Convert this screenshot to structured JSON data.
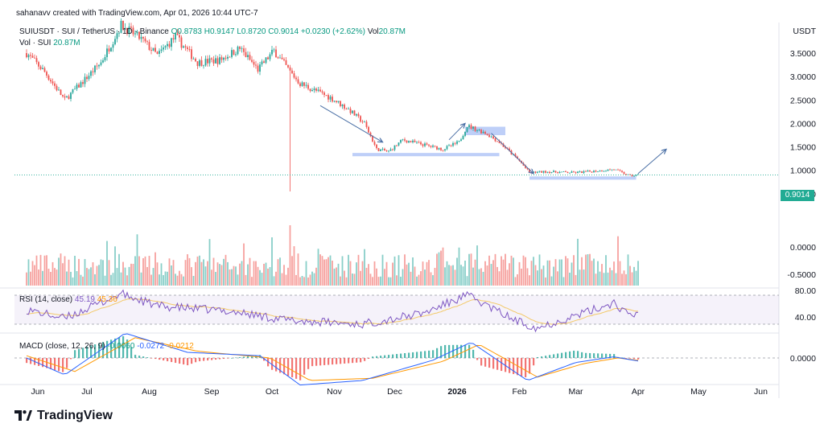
{
  "header": {
    "credit": "sahanavv created with TradingView.com, Apr 01, 2026 10:44 UTC-7",
    "symbol": "SUIUSDT · SUI / TetherUS · 1D · Binance",
    "open": "O0.8783",
    "high": "H0.9147",
    "low": "L0.8720",
    "close": "C0.9014",
    "change": "+0.0230 (+2.62%)",
    "vol_label": "Vol",
    "vol_value": "20.87M",
    "vol_line_label": "Vol · SUI",
    "vol_line_value": "20.87M"
  },
  "axis": {
    "currency": "USDT",
    "last_price_tag": "0.9014"
  },
  "rsi": {
    "label": "RSI (14, close)",
    "value": "45.19",
    "ma_value": "45.36"
  },
  "macd": {
    "label": "MACD (close, 12, 26, 9)",
    "hist_value": "-0.0060",
    "macd_value": "-0.0272",
    "signal_value": "-0.0212"
  },
  "brand": {
    "name": "TradingView"
  },
  "colors": {
    "up": "#26a69a",
    "down": "#ef5350",
    "zone": "#b3c7f7",
    "arrow": "#4a6fa5",
    "rsi_line": "#7e57c2",
    "rsi_ma": "#f3c969",
    "macd_line": "#2962ff",
    "signal_line": "#ff9800"
  },
  "chart_data": [
    {
      "type": "candlestick",
      "title": "SUIUSDT · SUI / TetherUS · 1D · Binance",
      "y_unit": "USDT",
      "y_ticks": [
        "3.5000",
        "3.0000",
        "2.5000",
        "2.0000",
        "1.5000",
        "1.0000",
        "0.5000",
        "0.0000",
        "-0.5000"
      ],
      "x_ticks": [
        "Jun",
        "Jul",
        "Aug",
        "Sep",
        "Oct",
        "Nov",
        "Dec",
        "2026",
        "Feb",
        "Mar",
        "Apr",
        "May",
        "Jun"
      ],
      "ylim": [
        -0.5,
        3.7
      ],
      "close_path": [
        [
          "2025-06-01",
          3.5
        ],
        [
          "2025-06-10",
          3.1
        ],
        [
          "2025-06-20",
          2.5
        ],
        [
          "2025-06-28",
          2.85
        ],
        [
          "2025-07-08",
          3.3
        ],
        [
          "2025-07-18",
          4.1
        ],
        [
          "2025-07-28",
          3.8
        ],
        [
          "2025-08-05",
          3.45
        ],
        [
          "2025-08-14",
          3.85
        ],
        [
          "2025-08-25",
          3.3
        ],
        [
          "2025-09-05",
          3.35
        ],
        [
          "2025-09-15",
          3.6
        ],
        [
          "2025-09-24",
          3.15
        ],
        [
          "2025-10-02",
          3.55
        ],
        [
          "2025-10-10",
          3.1
        ],
        [
          "2025-10-15",
          2.85
        ],
        [
          "2025-10-30",
          2.55
        ],
        [
          "2025-11-08",
          2.3
        ],
        [
          "2025-11-16",
          2.0
        ],
        [
          "2025-11-22",
          1.45
        ],
        [
          "2025-11-28",
          1.4
        ],
        [
          "2025-12-05",
          1.65
        ],
        [
          "2025-12-15",
          1.55
        ],
        [
          "2025-12-25",
          1.45
        ],
        [
          "2026-01-02",
          1.6
        ],
        [
          "2026-01-06",
          1.95
        ],
        [
          "2026-01-15",
          1.8
        ],
        [
          "2026-01-22",
          1.6
        ],
        [
          "2026-02-01",
          1.2
        ],
        [
          "2026-02-06",
          0.95
        ],
        [
          "2026-02-14",
          0.97
        ],
        [
          "2026-02-28",
          0.95
        ],
        [
          "2026-03-10",
          0.98
        ],
        [
          "2026-03-20",
          1.02
        ],
        [
          "2026-03-28",
          0.88
        ],
        [
          "2026-04-01",
          0.9014
        ]
      ],
      "flash_low": {
        "date": "2025-10-10",
        "value": 0.55
      },
      "last_close": 0.9014,
      "zones": [
        {
          "from": "2025-11-10",
          "to": "2026-01-22",
          "low": 1.3,
          "high": 1.37
        },
        {
          "from": "2026-01-05",
          "to": "2026-01-25",
          "low": 1.75,
          "high": 1.93
        },
        {
          "from": "2026-02-06",
          "to": "2026-03-31",
          "low": 0.8,
          "high": 0.87
        }
      ],
      "arrows": [
        {
          "from": [
            "2025-10-25",
            2.38
          ],
          "to": [
            "2025-11-25",
            1.6
          ]
        },
        {
          "from": [
            "2025-12-28",
            1.65
          ],
          "to": [
            "2026-01-05",
            2.0
          ]
        },
        {
          "from": [
            "2026-01-18",
            1.79
          ],
          "to": [
            "2026-02-08",
            0.93
          ]
        },
        {
          "from": [
            "2026-04-01",
            0.93
          ],
          "to": [
            "2026-04-15",
            1.45
          ]
        }
      ]
    },
    {
      "type": "bar",
      "title": "Vol · SUI",
      "value_last": "20.87M"
    },
    {
      "type": "line",
      "title": "RSI (14, close)",
      "y_ticks": [
        "80.00",
        "40.00"
      ],
      "ylim": [
        10,
        95
      ],
      "bands": [
        70,
        30
      ],
      "path": [
        [
          "2025-06-01",
          50
        ],
        [
          "2025-06-20",
          38
        ],
        [
          "2025-07-18",
          72
        ],
        [
          "2025-08-05",
          55
        ],
        [
          "2025-09-10",
          48
        ],
        [
          "2025-10-10",
          35
        ],
        [
          "2025-11-15",
          30
        ],
        [
          "2025-12-15",
          45
        ],
        [
          "2026-01-06",
          70
        ],
        [
          "2026-01-30",
          35
        ],
        [
          "2026-02-10",
          25
        ],
        [
          "2026-03-10",
          50
        ],
        [
          "2026-03-20",
          60
        ],
        [
          "2026-03-28",
          40
        ],
        [
          "2026-04-01",
          45.19
        ]
      ]
    },
    {
      "type": "line",
      "title": "MACD (close, 12, 26, 9)",
      "y_ticks": [
        "0.0000"
      ],
      "ylim": [
        -0.3,
        0.25
      ],
      "macd_path": [
        [
          "2025-06-01",
          0.0
        ],
        [
          "2025-06-20",
          -0.15
        ],
        [
          "2025-07-20",
          0.22
        ],
        [
          "2025-08-20",
          0.05
        ],
        [
          "2025-09-25",
          0.02
        ],
        [
          "2025-10-15",
          -0.24
        ],
        [
          "2025-11-15",
          -0.2
        ],
        [
          "2025-12-20",
          -0.02
        ],
        [
          "2026-01-08",
          0.14
        ],
        [
          "2026-02-05",
          -0.2
        ],
        [
          "2026-03-01",
          -0.04
        ],
        [
          "2026-03-20",
          0.01
        ],
        [
          "2026-04-01",
          -0.0272
        ]
      ],
      "signal_path": [
        [
          "2025-06-01",
          0.02
        ],
        [
          "2025-06-25",
          -0.12
        ],
        [
          "2025-07-25",
          0.18
        ],
        [
          "2025-08-25",
          0.06
        ],
        [
          "2025-09-30",
          0.0
        ],
        [
          "2025-10-20",
          -0.2
        ],
        [
          "2025-11-20",
          -0.18
        ],
        [
          "2025-12-25",
          -0.03
        ],
        [
          "2026-01-12",
          0.12
        ],
        [
          "2026-02-10",
          -0.17
        ],
        [
          "2026-03-05",
          -0.05
        ],
        [
          "2026-03-22",
          0.0
        ],
        [
          "2026-04-01",
          -0.0212
        ]
      ]
    }
  ]
}
